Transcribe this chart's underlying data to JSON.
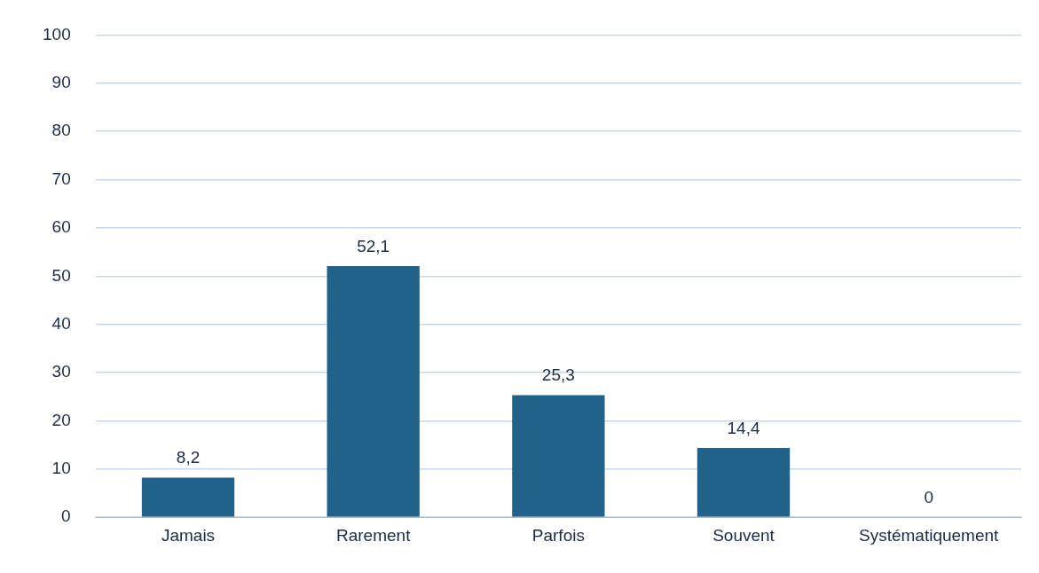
{
  "chart_data": {
    "type": "bar",
    "categories": [
      "Jamais",
      "Rarement",
      "Parfois",
      "Souvent",
      "Systématiquement"
    ],
    "values": [
      8.2,
      52.1,
      25.3,
      14.4,
      0
    ],
    "value_labels": [
      "8,2",
      "52,1",
      "25,3",
      "14,4",
      "0"
    ],
    "color": "#21628a",
    "ylim": [
      0,
      100
    ],
    "yticks": [
      0,
      10,
      20,
      30,
      40,
      50,
      60,
      70,
      80,
      90,
      100
    ],
    "grid": "y",
    "legend": false
  }
}
